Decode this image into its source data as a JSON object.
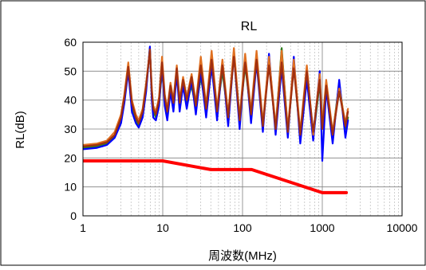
{
  "chart_data": {
    "type": "line",
    "title": "RL",
    "xlabel": "周波数(MHz)",
    "ylabel": "RL(dB)",
    "x_scale": "log",
    "xlim": [
      1,
      10000
    ],
    "ylim": [
      0,
      60
    ],
    "x_ticks": [
      1,
      10,
      100,
      1000,
      10000
    ],
    "x_tick_labels": [
      "1",
      "10",
      "100",
      "1000",
      "10000"
    ],
    "y_ticks": [
      0,
      10,
      20,
      30,
      40,
      50,
      60
    ],
    "y_tick_labels": [
      "0",
      "10",
      "20",
      "30",
      "40",
      "50",
      "60"
    ],
    "grid": true,
    "legend": "none",
    "series": [
      {
        "color": "#2e7d1e",
        "x": [
          1,
          1.5,
          2,
          2.5,
          3,
          3.3,
          3.7,
          4.1,
          4.6,
          5.0,
          5.6,
          6.2,
          6.9,
          7.3,
          7.6,
          8.2,
          9.0,
          9.8,
          10.6,
          11.4,
          12.5,
          13.6,
          15.0,
          16.3,
          18.0,
          20.0,
          23.0,
          26.0,
          30.0,
          35.0,
          41.0,
          48.0,
          56.0,
          66.0,
          78.0,
          92.0,
          108.0,
          128.0,
          150.0,
          180.0,
          215.0,
          260.0,
          310.0,
          370.0,
          440.0,
          530.0,
          640.0,
          770.0,
          930.0,
          1000.0,
          1120.0,
          1350.0,
          1630.0,
          1950.0,
          2100.0
        ],
        "y": [
          23.5,
          24.0,
          25.0,
          27.5,
          33.0,
          40.0,
          50.5,
          38.0,
          33.0,
          31.5,
          35.0,
          44.0,
          58.0,
          42.0,
          36.0,
          34.0,
          39.0,
          50.0,
          40.0,
          35.0,
          44.0,
          38.0,
          50.0,
          38.0,
          46.0,
          39.0,
          45.0,
          37.0,
          48.0,
          37.0,
          51.0,
          36.0,
          50.0,
          34.0,
          57.0,
          33.0,
          52.0,
          35.0,
          55.0,
          31.0,
          54.0,
          30.0,
          58.0,
          29.0,
          52.0,
          28.0,
          49.0,
          27.0,
          46.0,
          30.0,
          44.0,
          28.0,
          46.0,
          30.0,
          34.0
        ]
      },
      {
        "color": "#0000ff",
        "x": [
          1,
          1.5,
          2,
          2.5,
          3,
          3.3,
          3.7,
          4.1,
          4.6,
          5.0,
          5.6,
          6.2,
          6.9,
          7.3,
          7.6,
          8.2,
          9.0,
          9.8,
          10.6,
          11.4,
          12.5,
          13.6,
          15.0,
          16.3,
          18.0,
          20.0,
          23.0,
          26.0,
          30.0,
          35.0,
          41.0,
          48.0,
          56.0,
          66.0,
          78.0,
          92.0,
          108.0,
          128.0,
          150.0,
          180.0,
          215.0,
          260.0,
          310.0,
          370.0,
          440.0,
          530.0,
          640.0,
          770.0,
          930.0,
          1000.0,
          1120.0,
          1350.0,
          1630.0,
          1950.0,
          2100.0
        ],
        "y": [
          23.0,
          23.5,
          24.5,
          27.0,
          32.0,
          39.0,
          50.0,
          36.0,
          32.0,
          30.5,
          34.0,
          43.0,
          58.5,
          40.0,
          34.0,
          33.0,
          38.0,
          52.0,
          38.0,
          33.0,
          43.0,
          36.0,
          49.0,
          36.0,
          45.0,
          37.0,
          47.0,
          35.0,
          50.0,
          34.0,
          52.0,
          33.0,
          53.0,
          31.0,
          56.0,
          30.0,
          55.0,
          32.0,
          53.0,
          29.0,
          56.0,
          28.0,
          51.0,
          27.0,
          55.0,
          25.0,
          47.0,
          26.0,
          50.0,
          19.0,
          44.0,
          25.0,
          47.0,
          27.0,
          33.0
        ]
      },
      {
        "color": "#e07020",
        "x": [
          1,
          1.5,
          2,
          2.5,
          3,
          3.3,
          3.7,
          4.1,
          4.6,
          5.0,
          5.6,
          6.2,
          6.9,
          7.3,
          7.6,
          8.2,
          9.0,
          9.8,
          10.6,
          11.4,
          12.5,
          13.6,
          15.0,
          16.3,
          18.0,
          20.0,
          23.0,
          26.0,
          30.0,
          35.0,
          41.0,
          48.0,
          56.0,
          66.0,
          78.0,
          92.0,
          108.0,
          128.0,
          150.0,
          180.0,
          215.0,
          260.0,
          310.0,
          370.0,
          440.0,
          530.0,
          640.0,
          770.0,
          930.0,
          1000.0,
          1120.0,
          1350.0,
          1630.0,
          1950.0,
          2100.0
        ],
        "y": [
          24.5,
          25.0,
          26.0,
          29.0,
          35.0,
          42.0,
          53.0,
          40.0,
          35.0,
          33.0,
          37.0,
          46.0,
          57.0,
          44.0,
          38.0,
          36.0,
          41.0,
          55.0,
          42.0,
          37.0,
          46.0,
          40.0,
          52.0,
          40.0,
          48.0,
          41.0,
          49.0,
          39.0,
          55.0,
          38.0,
          57.0,
          37.0,
          54.0,
          35.0,
          58.0,
          34.0,
          56.0,
          36.0,
          57.0,
          32.0,
          55.0,
          31.0,
          57.0,
          30.0,
          54.0,
          29.0,
          52.0,
          28.0,
          49.0,
          31.0,
          47.0,
          29.0,
          44.0,
          32.0,
          37.0
        ]
      },
      {
        "color": "#a03010",
        "x": [
          1,
          1.5,
          2,
          2.5,
          3,
          3.3,
          3.7,
          4.1,
          4.6,
          5.0,
          5.6,
          6.2,
          6.9,
          7.3,
          7.6,
          8.2,
          9.0,
          9.8,
          10.6,
          11.4,
          12.5,
          13.6,
          15.0,
          16.3,
          18.0,
          20.0,
          23.0,
          26.0,
          30.0,
          35.0,
          41.0,
          48.0,
          56.0,
          66.0,
          78.0,
          92.0,
          108.0,
          128.0,
          150.0,
          180.0,
          215.0,
          260.0,
          310.0,
          370.0,
          440.0,
          530.0,
          640.0,
          770.0,
          930.0,
          1000.0,
          1120.0,
          1350.0,
          1630.0,
          1950.0,
          2100.0
        ],
        "y": [
          24.0,
          24.5,
          25.5,
          28.0,
          34.0,
          41.0,
          51.5,
          39.0,
          34.0,
          32.0,
          36.0,
          45.0,
          57.5,
          43.0,
          37.0,
          35.0,
          40.0,
          53.0,
          41.0,
          36.0,
          45.0,
          39.0,
          51.0,
          39.0,
          47.0,
          40.0,
          48.0,
          38.0,
          52.0,
          37.0,
          54.0,
          36.0,
          52.0,
          34.0,
          55.0,
          33.0,
          53.0,
          35.0,
          54.0,
          31.0,
          52.0,
          30.0,
          53.0,
          29.0,
          51.0,
          28.0,
          50.0,
          29.0,
          47.0,
          30.0,
          45.0,
          28.0,
          43.0,
          31.0,
          36.0
        ]
      },
      {
        "color": "#ff0000",
        "x": [
          1,
          10,
          40,
          130,
          1000,
          2000
        ],
        "y": [
          19,
          19,
          16,
          16,
          8,
          8
        ]
      }
    ]
  }
}
